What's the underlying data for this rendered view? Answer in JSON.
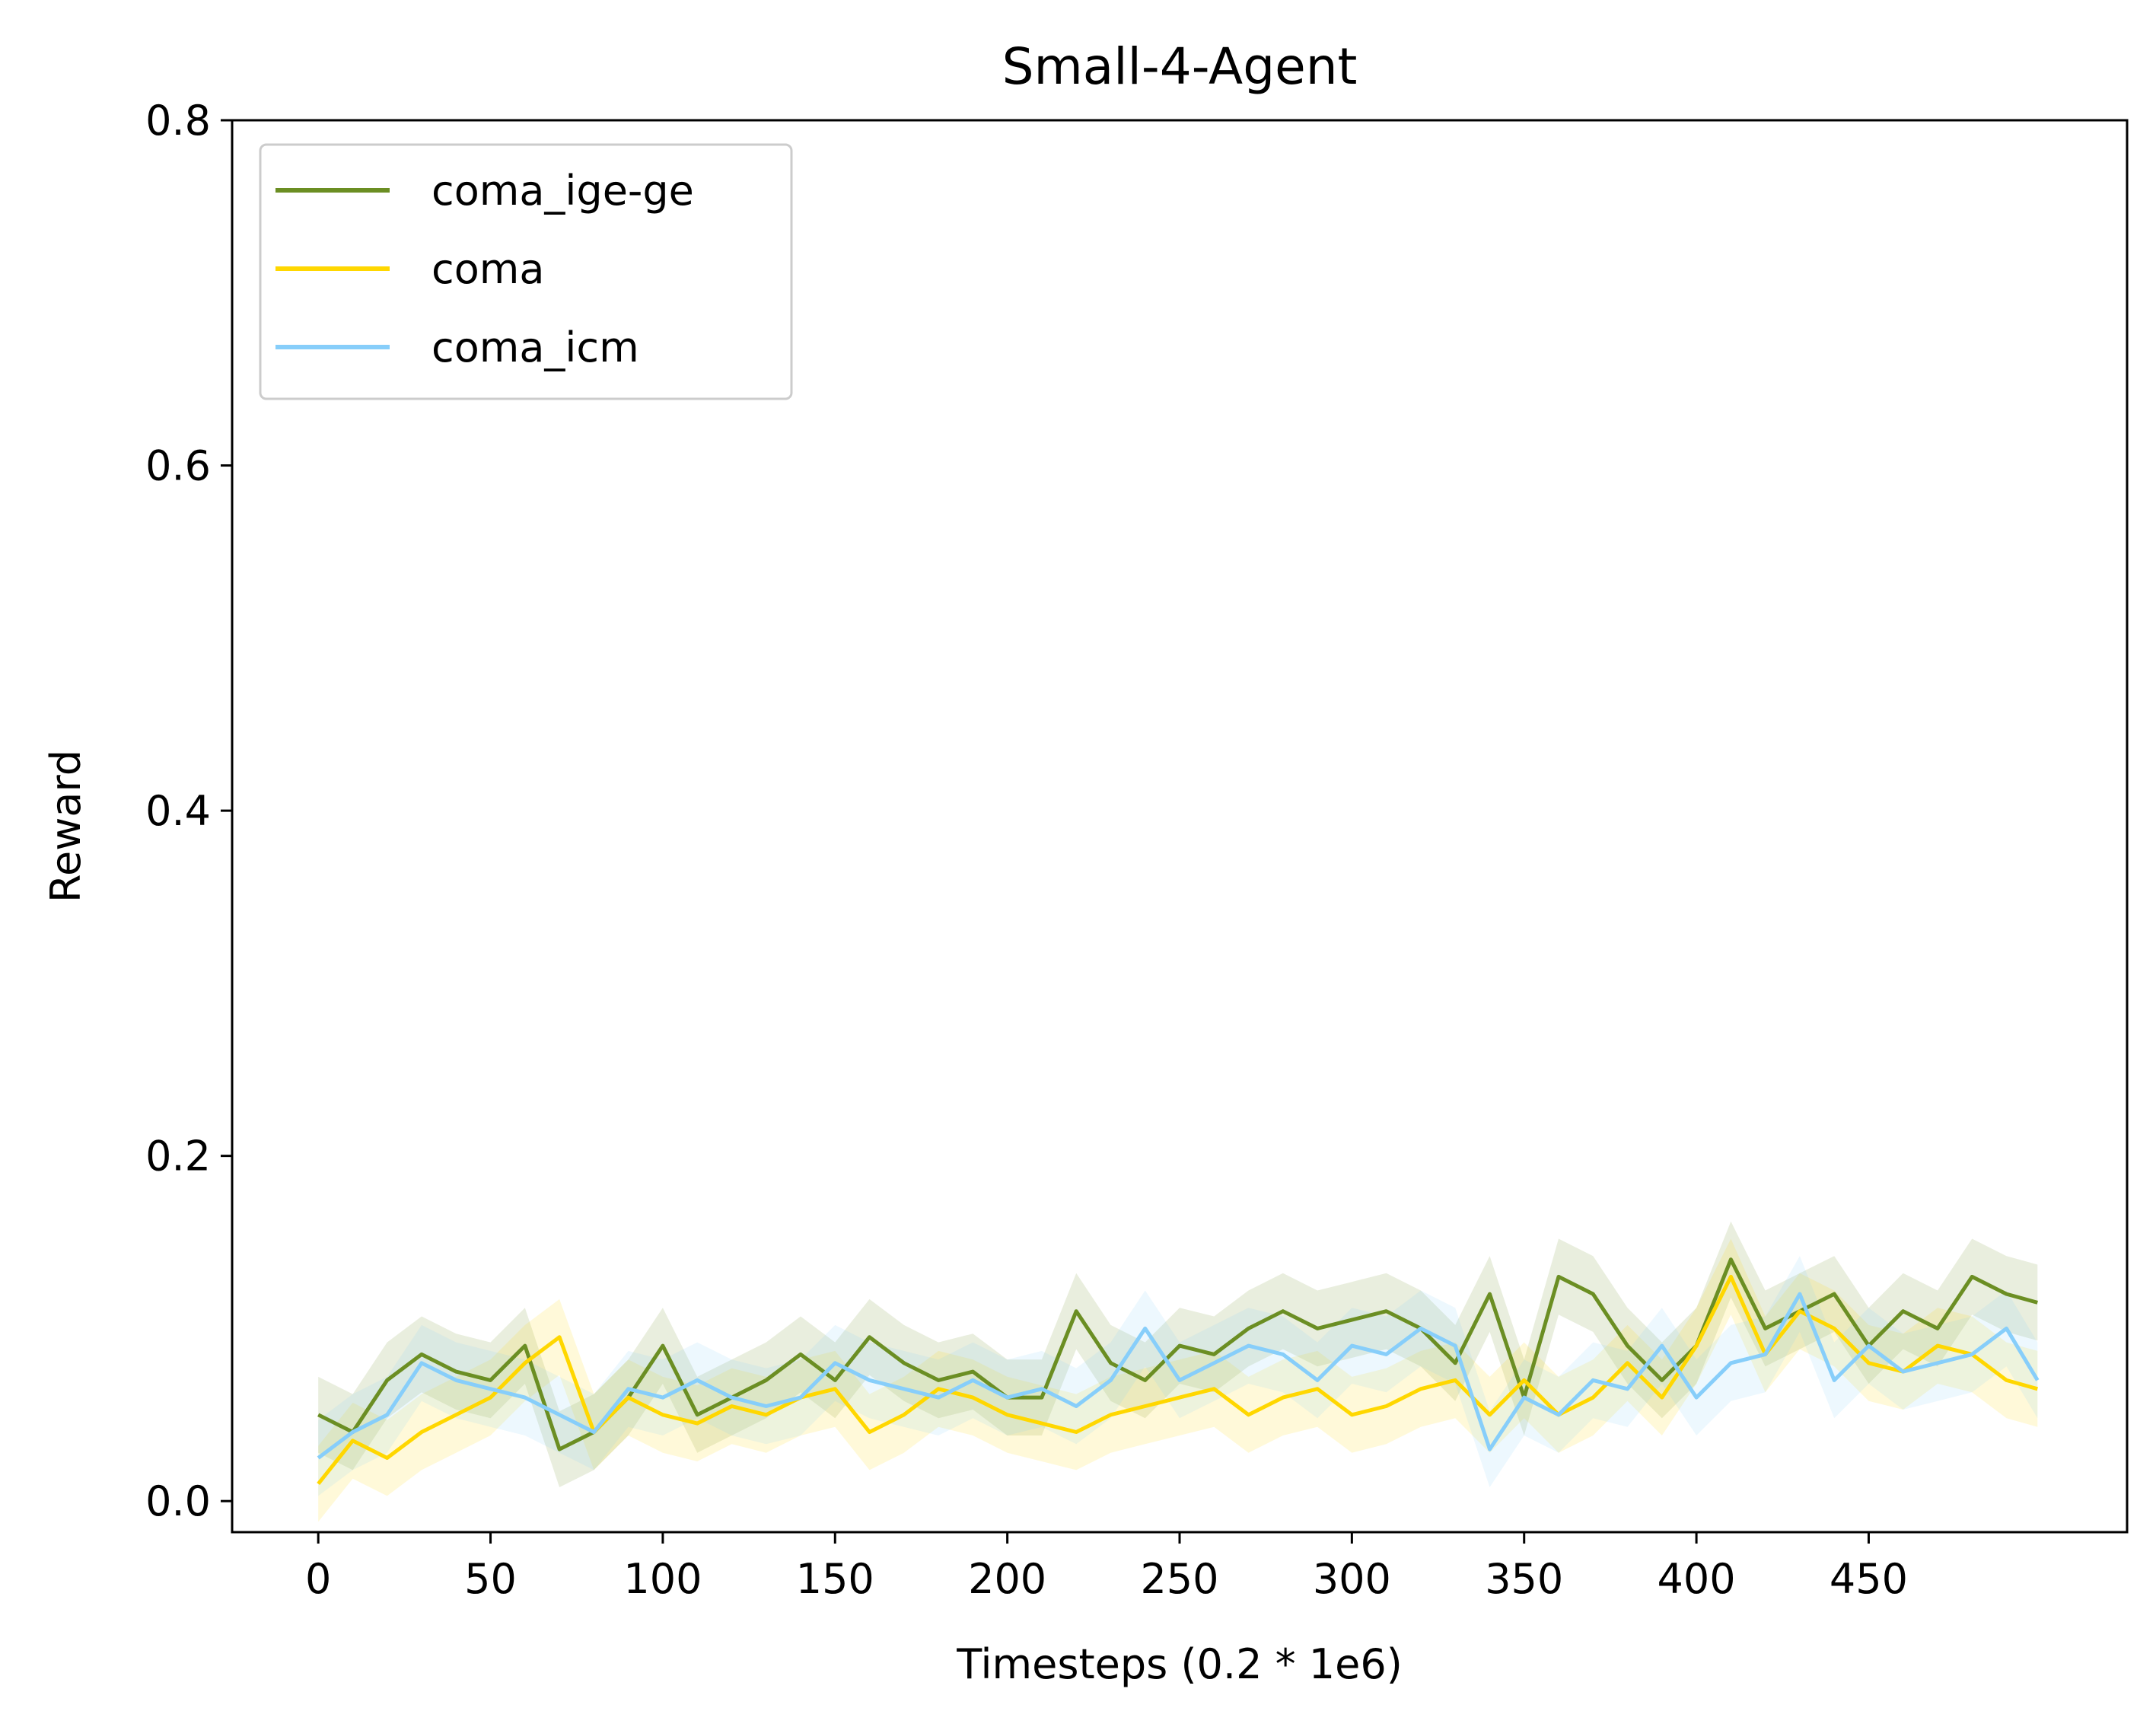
{
  "chart_data": {
    "type": "line",
    "title": "Small-4-Agent",
    "xlabel": "Timesteps (0.2 * 1e6)",
    "ylabel": "Reward",
    "xlim": [
      -25,
      525
    ],
    "ylim": [
      -0.018,
      0.8
    ],
    "xticks": [
      0,
      50,
      100,
      150,
      200,
      250,
      300,
      350,
      400,
      450
    ],
    "xtick_labels": [
      "0",
      "50",
      "100",
      "150",
      "200",
      "250",
      "300",
      "350",
      "400",
      "450"
    ],
    "yticks": [
      0.0,
      0.2,
      0.4,
      0.6,
      0.8
    ],
    "ytick_labels": [
      "0.0",
      "0.2",
      "0.4",
      "0.6",
      "0.8"
    ],
    "grid": false,
    "legend_position": "top-left",
    "band_halfwidth": 0.022,
    "x": [
      0,
      10,
      20,
      30,
      40,
      50,
      60,
      70,
      80,
      90,
      100,
      110,
      120,
      130,
      140,
      150,
      160,
      170,
      180,
      190,
      200,
      210,
      220,
      230,
      240,
      250,
      260,
      270,
      280,
      290,
      300,
      310,
      320,
      330,
      340,
      350,
      360,
      370,
      380,
      390,
      400,
      410,
      420,
      430,
      440,
      450,
      460,
      470,
      480,
      490,
      499
    ],
    "series": [
      {
        "name": "coma_ige-ge",
        "color": "#6b8e23",
        "values": [
          0.05,
          0.04,
          0.07,
          0.085,
          0.075,
          0.07,
          0.09,
          0.03,
          0.04,
          0.06,
          0.09,
          0.05,
          0.06,
          0.07,
          0.085,
          0.07,
          0.095,
          0.08,
          0.07,
          0.075,
          0.06,
          0.06,
          0.11,
          0.08,
          0.07,
          0.09,
          0.085,
          0.1,
          0.11,
          0.1,
          0.105,
          0.11,
          0.1,
          0.08,
          0.12,
          0.06,
          0.13,
          0.12,
          0.09,
          0.07,
          0.09,
          0.14,
          0.1,
          0.11,
          0.12,
          0.09,
          0.11,
          0.1,
          0.13,
          0.12,
          0.115
        ]
      },
      {
        "name": "coma",
        "color": "#ffd700",
        "values": [
          0.01,
          0.035,
          0.025,
          0.04,
          0.05,
          0.06,
          0.08,
          0.095,
          0.04,
          0.06,
          0.05,
          0.045,
          0.055,
          0.05,
          0.06,
          0.065,
          0.04,
          0.05,
          0.065,
          0.06,
          0.05,
          0.045,
          0.04,
          0.05,
          0.055,
          0.06,
          0.065,
          0.05,
          0.06,
          0.065,
          0.05,
          0.055,
          0.065,
          0.07,
          0.05,
          0.07,
          0.05,
          0.06,
          0.08,
          0.06,
          0.09,
          0.13,
          0.085,
          0.11,
          0.1,
          0.08,
          0.075,
          0.09,
          0.085,
          0.07,
          0.065
        ]
      },
      {
        "name": "coma_icm",
        "color": "#87cefa",
        "values": [
          0.025,
          0.04,
          0.05,
          0.08,
          0.07,
          0.065,
          0.06,
          0.05,
          0.04,
          0.065,
          0.06,
          0.07,
          0.06,
          0.055,
          0.06,
          0.08,
          0.07,
          0.065,
          0.06,
          0.07,
          0.06,
          0.065,
          0.055,
          0.07,
          0.1,
          0.07,
          0.08,
          0.09,
          0.085,
          0.07,
          0.09,
          0.085,
          0.1,
          0.09,
          0.03,
          0.06,
          0.05,
          0.07,
          0.065,
          0.09,
          0.06,
          0.08,
          0.085,
          0.12,
          0.07,
          0.09,
          0.075,
          0.08,
          0.085,
          0.1,
          0.07
        ]
      }
    ]
  }
}
